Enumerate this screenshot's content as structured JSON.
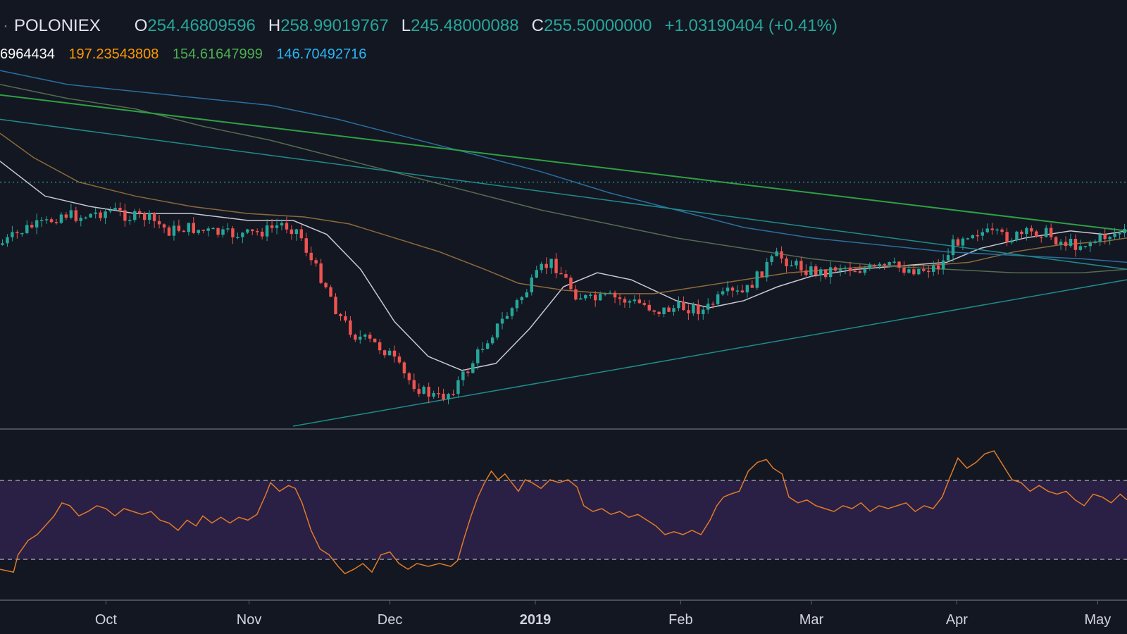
{
  "legend": {
    "symbol": "POLONIEX",
    "open_key": "O",
    "open": "254.46809596",
    "high_key": "H",
    "high": "258.99019767",
    "low_key": "L",
    "low": "245.48000088",
    "close_key": "C",
    "close": "255.50000000",
    "change": "+1.03190404 (+0.41%)"
  },
  "ma_values": [
    {
      "text": "6964434",
      "color": "#ffffff"
    },
    {
      "text": "197.23543808",
      "color": "#ff9800"
    },
    {
      "text": "154.61647999",
      "color": "#4caf50"
    },
    {
      "text": "146.70492716",
      "color": "#29b6f6"
    }
  ],
  "colors": {
    "background": "#131722",
    "up": "#26a69a",
    "down": "#ef5350",
    "ma_white": "#c8c8d2",
    "ma_orange": "#8d6a3a",
    "ma_green": "#556b50",
    "ma_blue": "#2a6fa0",
    "trend_green": "#2ea043",
    "trend_teal": "#1e8c8c",
    "rsi_line": "#e07b28",
    "rsi_band": "#2a1f44"
  },
  "chart_data": [
    {
      "type": "candlestick",
      "x_axis_labels": [
        "Oct",
        "Nov",
        "Dec",
        "2019",
        "Feb",
        "Mar",
        "Apr",
        "May"
      ],
      "x_axis_label_positions": [
        0.094,
        0.221,
        0.346,
        0.475,
        0.604,
        0.72,
        0.849,
        0.974
      ],
      "close_path": [
        [
          0.0,
          0.48
        ],
        [
          0.01,
          0.46
        ],
        [
          0.025,
          0.43
        ],
        [
          0.04,
          0.42
        ],
        [
          0.055,
          0.39
        ],
        [
          0.07,
          0.4
        ],
        [
          0.085,
          0.39
        ],
        [
          0.1,
          0.38
        ],
        [
          0.115,
          0.4
        ],
        [
          0.13,
          0.4
        ],
        [
          0.14,
          0.42
        ],
        [
          0.15,
          0.44
        ],
        [
          0.165,
          0.43
        ],
        [
          0.18,
          0.44
        ],
        [
          0.2,
          0.45
        ],
        [
          0.22,
          0.45
        ],
        [
          0.235,
          0.44
        ],
        [
          0.25,
          0.42
        ],
        [
          0.265,
          0.44
        ],
        [
          0.275,
          0.52
        ],
        [
          0.29,
          0.6
        ],
        [
          0.3,
          0.68
        ],
        [
          0.315,
          0.74
        ],
        [
          0.33,
          0.76
        ],
        [
          0.345,
          0.79
        ],
        [
          0.36,
          0.86
        ],
        [
          0.375,
          0.9
        ],
        [
          0.39,
          0.92
        ],
        [
          0.4,
          0.9
        ],
        [
          0.415,
          0.84
        ],
        [
          0.43,
          0.76
        ],
        [
          0.44,
          0.72
        ],
        [
          0.455,
          0.66
        ],
        [
          0.47,
          0.6
        ],
        [
          0.48,
          0.55
        ],
        [
          0.49,
          0.53
        ],
        [
          0.5,
          0.57
        ],
        [
          0.51,
          0.62
        ],
        [
          0.525,
          0.64
        ],
        [
          0.54,
          0.63
        ],
        [
          0.555,
          0.64
        ],
        [
          0.57,
          0.65
        ],
        [
          0.585,
          0.67
        ],
        [
          0.6,
          0.66
        ],
        [
          0.615,
          0.66
        ],
        [
          0.625,
          0.67
        ],
        [
          0.635,
          0.64
        ],
        [
          0.645,
          0.62
        ],
        [
          0.66,
          0.62
        ],
        [
          0.67,
          0.58
        ],
        [
          0.68,
          0.54
        ],
        [
          0.69,
          0.51
        ],
        [
          0.7,
          0.53
        ],
        [
          0.715,
          0.55
        ],
        [
          0.73,
          0.56
        ],
        [
          0.745,
          0.54
        ],
        [
          0.76,
          0.55
        ],
        [
          0.775,
          0.55
        ],
        [
          0.79,
          0.54
        ],
        [
          0.805,
          0.55
        ],
        [
          0.82,
          0.55
        ],
        [
          0.835,
          0.54
        ],
        [
          0.845,
          0.48
        ],
        [
          0.855,
          0.45
        ],
        [
          0.865,
          0.44
        ],
        [
          0.88,
          0.45
        ],
        [
          0.895,
          0.46
        ],
        [
          0.91,
          0.45
        ],
        [
          0.925,
          0.44
        ],
        [
          0.94,
          0.47
        ],
        [
          0.955,
          0.48
        ],
        [
          0.97,
          0.47
        ],
        [
          0.985,
          0.45
        ],
        [
          1.0,
          0.44
        ]
      ],
      "series_lines": [
        {
          "name": "ma_white",
          "points": [
            [
              0.0,
              0.24
            ],
            [
              0.04,
              0.34
            ],
            [
              0.08,
              0.37
            ],
            [
              0.12,
              0.39
            ],
            [
              0.17,
              0.39
            ],
            [
              0.22,
              0.41
            ],
            [
              0.26,
              0.41
            ],
            [
              0.29,
              0.45
            ],
            [
              0.32,
              0.55
            ],
            [
              0.35,
              0.7
            ],
            [
              0.38,
              0.8
            ],
            [
              0.41,
              0.84
            ],
            [
              0.44,
              0.82
            ],
            [
              0.47,
              0.72
            ],
            [
              0.5,
              0.6
            ],
            [
              0.53,
              0.56
            ],
            [
              0.56,
              0.58
            ],
            [
              0.6,
              0.64
            ],
            [
              0.63,
              0.66
            ],
            [
              0.66,
              0.64
            ],
            [
              0.69,
              0.6
            ],
            [
              0.72,
              0.57
            ],
            [
              0.76,
              0.55
            ],
            [
              0.8,
              0.54
            ],
            [
              0.84,
              0.53
            ],
            [
              0.87,
              0.49
            ],
            [
              0.91,
              0.46
            ],
            [
              0.95,
              0.44
            ],
            [
              0.98,
              0.45
            ],
            [
              1.0,
              0.44
            ]
          ],
          "stroke": "#c8c8d2",
          "width": 1.5
        },
        {
          "name": "ma_orange",
          "points": [
            [
              0.0,
              0.16
            ],
            [
              0.03,
              0.23
            ],
            [
              0.07,
              0.3
            ],
            [
              0.12,
              0.34
            ],
            [
              0.17,
              0.37
            ],
            [
              0.22,
              0.39
            ],
            [
              0.27,
              0.4
            ],
            [
              0.31,
              0.42
            ],
            [
              0.35,
              0.46
            ],
            [
              0.39,
              0.5
            ],
            [
              0.43,
              0.55
            ],
            [
              0.46,
              0.59
            ],
            [
              0.5,
              0.61
            ],
            [
              0.54,
              0.62
            ],
            [
              0.58,
              0.62
            ],
            [
              0.62,
              0.6
            ],
            [
              0.66,
              0.58
            ],
            [
              0.7,
              0.56
            ],
            [
              0.74,
              0.55
            ],
            [
              0.78,
              0.54
            ],
            [
              0.82,
              0.54
            ],
            [
              0.86,
              0.53
            ],
            [
              0.9,
              0.5
            ],
            [
              0.94,
              0.48
            ],
            [
              0.98,
              0.47
            ],
            [
              1.0,
              0.46
            ]
          ],
          "stroke": "#8d6a3a",
          "width": 1.5
        },
        {
          "name": "ma_green",
          "points": [
            [
              0.0,
              0.02
            ],
            [
              0.06,
              0.06
            ],
            [
              0.12,
              0.09
            ],
            [
              0.18,
              0.14
            ],
            [
              0.24,
              0.18
            ],
            [
              0.3,
              0.23
            ],
            [
              0.36,
              0.28
            ],
            [
              0.42,
              0.33
            ],
            [
              0.48,
              0.38
            ],
            [
              0.54,
              0.42
            ],
            [
              0.6,
              0.46
            ],
            [
              0.66,
              0.49
            ],
            [
              0.72,
              0.52
            ],
            [
              0.78,
              0.54
            ],
            [
              0.84,
              0.55
            ],
            [
              0.9,
              0.56
            ],
            [
              0.96,
              0.56
            ],
            [
              1.0,
              0.55
            ]
          ],
          "stroke": "#556b50",
          "width": 1.5
        },
        {
          "name": "ma_blue",
          "points": [
            [
              0.0,
              -0.02
            ],
            [
              0.06,
              0.02
            ],
            [
              0.12,
              0.04
            ],
            [
              0.18,
              0.06
            ],
            [
              0.24,
              0.08
            ],
            [
              0.3,
              0.12
            ],
            [
              0.36,
              0.17
            ],
            [
              0.42,
              0.22
            ],
            [
              0.48,
              0.27
            ],
            [
              0.54,
              0.33
            ],
            [
              0.6,
              0.38
            ],
            [
              0.66,
              0.43
            ],
            [
              0.72,
              0.46
            ],
            [
              0.78,
              0.48
            ],
            [
              0.84,
              0.5
            ],
            [
              0.9,
              0.51
            ],
            [
              0.96,
              0.52
            ],
            [
              1.0,
              0.53
            ]
          ],
          "stroke": "#2a6fa0",
          "width": 1.5
        },
        {
          "name": "trend_green",
          "points": [
            [
              0.0,
              0.05
            ],
            [
              1.0,
              0.44
            ]
          ],
          "stroke": "#2ea043",
          "width": 2
        },
        {
          "name": "trend_teal_upper",
          "points": [
            [
              0.0,
              0.12
            ],
            [
              1.0,
              0.55
            ]
          ],
          "stroke": "#1e8c8c",
          "width": 1.5
        },
        {
          "name": "trend_teal_lower",
          "points": [
            [
              0.26,
              1.0
            ],
            [
              1.0,
              0.58
            ]
          ],
          "stroke": "#1e8c8c",
          "width": 1.5
        }
      ],
      "horizontal_level": 0.3
    },
    {
      "type": "line",
      "name": "RSI",
      "band": [
        0.25,
        0.75
      ],
      "points": [
        [
          0.0,
          0.82
        ],
        [
          0.012,
          0.84
        ],
        [
          0.016,
          0.72
        ],
        [
          0.025,
          0.62
        ],
        [
          0.033,
          0.58
        ],
        [
          0.04,
          0.52
        ],
        [
          0.048,
          0.45
        ],
        [
          0.055,
          0.36
        ],
        [
          0.062,
          0.38
        ],
        [
          0.07,
          0.45
        ],
        [
          0.078,
          0.42
        ],
        [
          0.086,
          0.38
        ],
        [
          0.094,
          0.4
        ],
        [
          0.102,
          0.45
        ],
        [
          0.11,
          0.4
        ],
        [
          0.118,
          0.42
        ],
        [
          0.126,
          0.44
        ],
        [
          0.134,
          0.42
        ],
        [
          0.142,
          0.48
        ],
        [
          0.15,
          0.5
        ],
        [
          0.158,
          0.55
        ],
        [
          0.166,
          0.48
        ],
        [
          0.174,
          0.52
        ],
        [
          0.18,
          0.45
        ],
        [
          0.188,
          0.5
        ],
        [
          0.196,
          0.46
        ],
        [
          0.204,
          0.5
        ],
        [
          0.212,
          0.46
        ],
        [
          0.22,
          0.48
        ],
        [
          0.228,
          0.44
        ],
        [
          0.236,
          0.3
        ],
        [
          0.24,
          0.22
        ],
        [
          0.248,
          0.28
        ],
        [
          0.256,
          0.24
        ],
        [
          0.262,
          0.26
        ],
        [
          0.268,
          0.36
        ],
        [
          0.276,
          0.55
        ],
        [
          0.284,
          0.68
        ],
        [
          0.292,
          0.72
        ],
        [
          0.3,
          0.8
        ],
        [
          0.306,
          0.85
        ],
        [
          0.314,
          0.82
        ],
        [
          0.322,
          0.78
        ],
        [
          0.33,
          0.84
        ],
        [
          0.338,
          0.72
        ],
        [
          0.346,
          0.7
        ],
        [
          0.354,
          0.78
        ],
        [
          0.362,
          0.82
        ],
        [
          0.37,
          0.78
        ],
        [
          0.38,
          0.8
        ],
        [
          0.39,
          0.78
        ],
        [
          0.4,
          0.8
        ],
        [
          0.406,
          0.76
        ],
        [
          0.412,
          0.6
        ],
        [
          0.418,
          0.45
        ],
        [
          0.424,
          0.32
        ],
        [
          0.43,
          0.22
        ],
        [
          0.436,
          0.14
        ],
        [
          0.442,
          0.2
        ],
        [
          0.448,
          0.16
        ],
        [
          0.454,
          0.22
        ],
        [
          0.46,
          0.28
        ],
        [
          0.466,
          0.2
        ],
        [
          0.472,
          0.22
        ],
        [
          0.48,
          0.26
        ],
        [
          0.488,
          0.2
        ],
        [
          0.496,
          0.22
        ],
        [
          0.504,
          0.2
        ],
        [
          0.512,
          0.25
        ],
        [
          0.518,
          0.38
        ],
        [
          0.526,
          0.42
        ],
        [
          0.534,
          0.4
        ],
        [
          0.542,
          0.44
        ],
        [
          0.55,
          0.42
        ],
        [
          0.558,
          0.46
        ],
        [
          0.566,
          0.44
        ],
        [
          0.574,
          0.48
        ],
        [
          0.582,
          0.52
        ],
        [
          0.59,
          0.58
        ],
        [
          0.598,
          0.56
        ],
        [
          0.606,
          0.58
        ],
        [
          0.614,
          0.55
        ],
        [
          0.622,
          0.58
        ],
        [
          0.63,
          0.48
        ],
        [
          0.636,
          0.38
        ],
        [
          0.642,
          0.32
        ],
        [
          0.648,
          0.3
        ],
        [
          0.656,
          0.28
        ],
        [
          0.664,
          0.14
        ],
        [
          0.672,
          0.08
        ],
        [
          0.68,
          0.06
        ],
        [
          0.686,
          0.12
        ],
        [
          0.694,
          0.16
        ],
        [
          0.7,
          0.32
        ],
        [
          0.708,
          0.36
        ],
        [
          0.716,
          0.34
        ],
        [
          0.724,
          0.38
        ],
        [
          0.732,
          0.4
        ],
        [
          0.74,
          0.42
        ],
        [
          0.748,
          0.38
        ],
        [
          0.756,
          0.4
        ],
        [
          0.764,
          0.36
        ],
        [
          0.772,
          0.42
        ],
        [
          0.78,
          0.38
        ],
        [
          0.788,
          0.4
        ],
        [
          0.796,
          0.38
        ],
        [
          0.804,
          0.36
        ],
        [
          0.812,
          0.42
        ],
        [
          0.82,
          0.38
        ],
        [
          0.828,
          0.4
        ],
        [
          0.836,
          0.32
        ],
        [
          0.842,
          0.2
        ],
        [
          0.85,
          0.05
        ],
        [
          0.858,
          0.12
        ],
        [
          0.866,
          0.08
        ],
        [
          0.874,
          0.02
        ],
        [
          0.882,
          0.0
        ],
        [
          0.89,
          0.1
        ],
        [
          0.898,
          0.2
        ],
        [
          0.906,
          0.22
        ],
        [
          0.914,
          0.28
        ],
        [
          0.922,
          0.24
        ],
        [
          0.93,
          0.28
        ],
        [
          0.938,
          0.3
        ],
        [
          0.946,
          0.28
        ],
        [
          0.954,
          0.34
        ],
        [
          0.962,
          0.38
        ],
        [
          0.97,
          0.3
        ],
        [
          0.978,
          0.32
        ],
        [
          0.986,
          0.36
        ],
        [
          0.994,
          0.3
        ],
        [
          1.0,
          0.34
        ]
      ]
    }
  ]
}
